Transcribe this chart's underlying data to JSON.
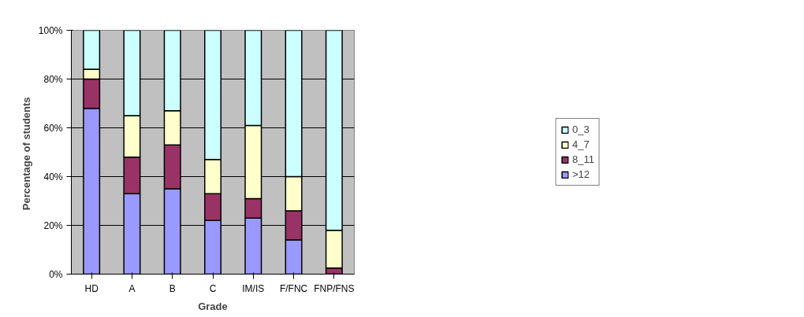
{
  "chart_data": {
    "type": "bar",
    "stacked": true,
    "xlabel": "Grade",
    "ylabel": "Percentage  of students",
    "categories": [
      "HD",
      "A",
      "B",
      "C",
      "IM/IS",
      "F/FNC",
      "FNP/FNS"
    ],
    "series": [
      {
        "name": ">12",
        "color": "#9999ff",
        "values": [
          68,
          33,
          35,
          22,
          23,
          14,
          0
        ]
      },
      {
        "name": "8_11",
        "color": "#993366",
        "values": [
          12,
          15,
          18,
          11,
          8,
          12,
          2.5
        ]
      },
      {
        "name": "4_7",
        "color": "#ffffcc",
        "values": [
          4,
          17,
          14,
          14,
          30,
          14,
          15.5
        ]
      },
      {
        "name": "0_3",
        "color": "#ccffff",
        "values": [
          16,
          35,
          33,
          53,
          39,
          60,
          82
        ]
      }
    ],
    "ylim": [
      0,
      100
    ],
    "yticks": [
      {
        "value": 0,
        "label": "0%"
      },
      {
        "value": 20,
        "label": "20%"
      },
      {
        "value": 40,
        "label": "40%"
      },
      {
        "value": 60,
        "label": "60%"
      },
      {
        "value": 80,
        "label": "80%"
      },
      {
        "value": 100,
        "label": "100%"
      }
    ],
    "grid": "y",
    "legend": "right"
  }
}
